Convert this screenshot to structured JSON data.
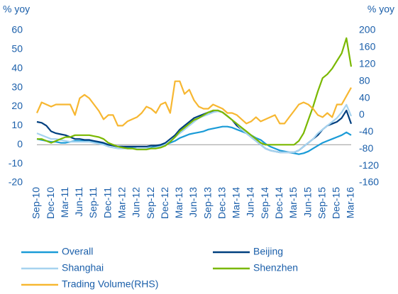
{
  "chart_data": {
    "type": "line",
    "y_label": "% yoy",
    "y2_label": "% yoy",
    "categories": [
      "Sep-10",
      null,
      null,
      "Dec-10",
      null,
      null,
      "Mar-11",
      null,
      null,
      "Jun-11",
      null,
      null,
      "Sep-11",
      null,
      null,
      "Dec-11",
      null,
      null,
      "Mar-12",
      null,
      null,
      "Jun-12",
      null,
      null,
      "Sep-12",
      null,
      null,
      "Dec-12",
      null,
      null,
      "Mar-13",
      null,
      null,
      "Jun-13",
      null,
      null,
      "Sep-13",
      null,
      null,
      "Dec-13",
      null,
      null,
      "Mar-14",
      null,
      null,
      "Jun-14",
      null,
      null,
      "Sep-14",
      null,
      null,
      "Dec-14",
      null,
      null,
      "Mar-15",
      null,
      null,
      "Jun-15",
      null,
      null,
      "Sep-15",
      null,
      null,
      "Dec-15",
      null,
      null,
      "Mar-16"
    ],
    "series": [
      {
        "name": "Overall",
        "color": "#1a9bd7",
        "values": [
          3,
          2.5,
          2,
          1.5,
          1.5,
          1,
          1,
          1.5,
          2,
          2,
          2,
          2,
          1.5,
          1,
          0.5,
          0,
          -0.5,
          -1,
          -1,
          -1.5,
          -1.5,
          -2,
          -2,
          -2,
          -1.5,
          -1,
          -0.5,
          0,
          1,
          2,
          3.5,
          4.5,
          5.5,
          6,
          6.5,
          7,
          8,
          8.5,
          9,
          9.5,
          9.5,
          9,
          8,
          7,
          6,
          5,
          3.5,
          2.5,
          0.5,
          -1,
          -2,
          -3,
          -3.5,
          -4,
          -4.5,
          -5,
          -4.5,
          -3.5,
          -2,
          -0.5,
          1,
          2,
          3,
          4,
          5,
          6.5,
          5
        ]
      },
      {
        "name": "Beijing",
        "color": "#003f7f",
        "values": [
          12,
          11.5,
          10,
          7,
          6,
          5.5,
          5,
          4,
          3,
          3,
          2.5,
          2.5,
          2,
          1.5,
          1,
          0,
          -0.5,
          -1,
          -1,
          -1,
          -1,
          -1,
          -1,
          -1,
          -0.5,
          -0.5,
          0,
          1,
          3,
          5,
          8,
          10,
          12,
          14,
          15,
          16,
          17,
          17.5,
          18,
          17,
          15,
          13,
          10,
          8,
          6,
          4,
          2,
          0,
          -2,
          -3,
          -3.5,
          -4,
          -4,
          -4,
          -4,
          -3,
          -1,
          1,
          3,
          5,
          8,
          10,
          11,
          12,
          14,
          18,
          11
        ]
      },
      {
        "name": "Shanghai",
        "color": "#a6d3ef",
        "values": [
          6,
          5,
          4,
          3,
          3,
          2.5,
          2,
          1.5,
          1.5,
          1.5,
          1.5,
          1.5,
          1,
          0.5,
          0,
          -1,
          -1.5,
          -2,
          -2,
          -2,
          -2,
          -2,
          -2,
          -2,
          -2,
          -1.5,
          -1,
          0,
          2,
          4,
          6,
          8,
          10,
          12,
          14,
          15,
          16,
          17,
          17.5,
          17,
          15,
          13,
          11,
          8,
          6,
          4,
          2,
          0,
          -2,
          -3,
          -3.5,
          -4,
          -4,
          -4,
          -4,
          -3,
          -1,
          1,
          3,
          6,
          8,
          10,
          12,
          14,
          17,
          21,
          15
        ]
      },
      {
        "name": "Shenzhen",
        "color": "#7ab800",
        "values": [
          3,
          3,
          2,
          1,
          2,
          3,
          4,
          4,
          5,
          5,
          5,
          5,
          4.5,
          4,
          3,
          1,
          0,
          -1,
          -1.5,
          -2,
          -2,
          -2.5,
          -2.5,
          -2.5,
          -2,
          -2,
          -1.5,
          -0.5,
          1.5,
          4,
          7,
          9,
          11,
          13,
          14,
          15.5,
          17,
          18,
          18,
          17,
          15,
          13,
          11,
          9,
          7,
          5,
          3,
          1,
          0,
          0,
          0,
          0,
          0,
          0,
          0,
          2,
          6,
          13,
          20,
          28,
          35,
          37,
          40,
          44,
          48,
          56,
          41
        ]
      },
      {
        "name": "Trading Volume(RHS)",
        "color": "#f7b731",
        "axis": "y2",
        "values": [
          5,
          30,
          25,
          20,
          25,
          25,
          25,
          25,
          0,
          40,
          48,
          40,
          25,
          10,
          -10,
          0,
          0,
          -25,
          -25,
          -15,
          -10,
          -5,
          5,
          20,
          15,
          5,
          25,
          30,
          5,
          80,
          80,
          50,
          60,
          35,
          20,
          15,
          15,
          25,
          20,
          15,
          5,
          5,
          0,
          -10,
          -20,
          -15,
          -5,
          -15,
          -10,
          -5,
          0,
          -20,
          -20,
          -5,
          10,
          25,
          30,
          25,
          15,
          0,
          -5,
          5,
          -5,
          25,
          25,
          45,
          65
        ]
      }
    ],
    "ylim": [
      -20,
      60
    ],
    "yticks": [
      -20,
      -10,
      0,
      10,
      20,
      30,
      40,
      50,
      60
    ],
    "y2lim": [
      -160,
      200
    ],
    "y2ticks": [
      -160,
      -120,
      -80,
      -40,
      0,
      40,
      80,
      120,
      160,
      200
    ],
    "grid": false,
    "legend": "bottom"
  }
}
